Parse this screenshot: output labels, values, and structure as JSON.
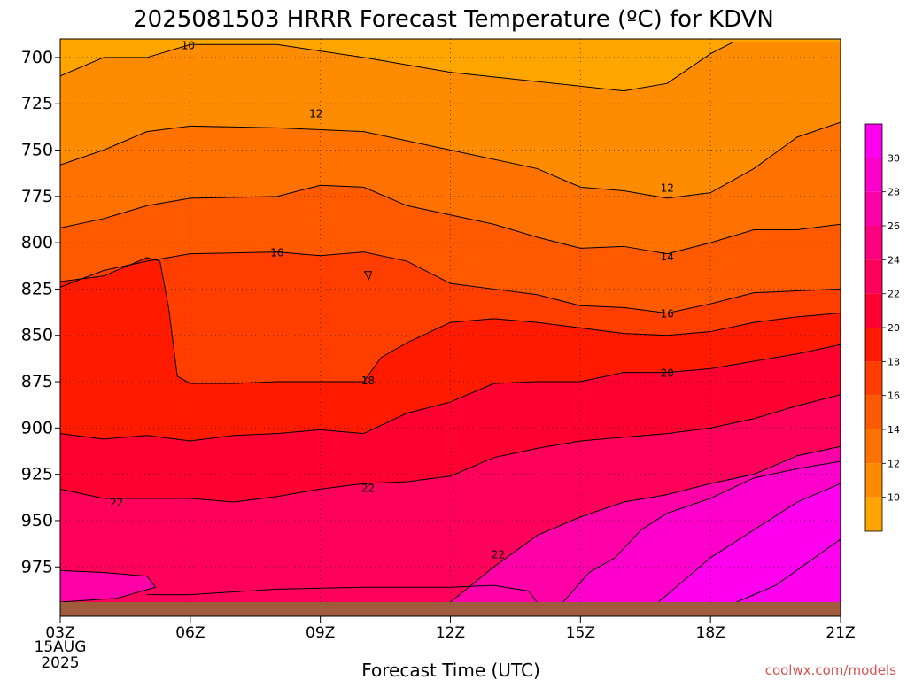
{
  "chart_data": {
    "type": "heatmap",
    "title": "2025081503 HRRR Forecast Temperature (ºC) for KDVN",
    "xlabel": "Forecast Time (UTC)",
    "ylabel": "",
    "x_ticks": [
      "03Z",
      "06Z",
      "09Z",
      "12Z",
      "15Z",
      "18Z",
      "21Z"
    ],
    "x_tick_hours": [
      3,
      6,
      9,
      12,
      15,
      18,
      21
    ],
    "x_date_lines": [
      "15AUG",
      "2025"
    ],
    "xlim": [
      3,
      21
    ],
    "y_ticks": [
      "700",
      "725",
      "750",
      "775",
      "800",
      "825",
      "850",
      "875",
      "900",
      "925",
      "950",
      "975"
    ],
    "y_tick_values": [
      700,
      725,
      750,
      775,
      800,
      825,
      850,
      875,
      900,
      925,
      950,
      975
    ],
    "ylim": [
      690,
      994
    ],
    "y_inverted": true,
    "grid": true,
    "colorbar": {
      "levels": [
        10,
        12,
        14,
        16,
        18,
        20,
        22,
        24,
        26,
        28,
        30
      ],
      "labels": [
        "10",
        "12",
        "14",
        "16",
        "18",
        "20",
        "22",
        "24",
        "26",
        "28",
        "30"
      ],
      "colors": [
        "#ffa500",
        "#ff8c00",
        "#ff7200",
        "#ff5a00",
        "#ff3e00",
        "#ff1a00",
        "#ff0030",
        "#ff005a",
        "#ff0080",
        "#ff00a8",
        "#ff00cc",
        "#ff00ee"
      ]
    },
    "contours": [
      {
        "level": 10,
        "label": "10",
        "label_at": [
          5.95,
          693
        ],
        "points": [
          [
            3,
            710
          ],
          [
            4,
            700
          ],
          [
            5,
            700
          ],
          [
            6,
            693
          ],
          [
            8,
            693
          ],
          [
            10,
            700
          ],
          [
            12,
            708
          ],
          [
            14,
            713
          ],
          [
            16,
            718
          ],
          [
            17,
            714
          ],
          [
            17.5,
            706
          ],
          [
            18,
            698
          ],
          [
            18.5,
            692
          ]
        ]
      },
      {
        "level": 12,
        "label": "12",
        "label_at": [
          17,
          770
        ],
        "points": [
          [
            3,
            758
          ],
          [
            4,
            750
          ],
          [
            5,
            740
          ],
          [
            6,
            737
          ],
          [
            8,
            738
          ],
          [
            10,
            740
          ],
          [
            12,
            750
          ],
          [
            14,
            760
          ],
          [
            15,
            770
          ],
          [
            16,
            772
          ],
          [
            17,
            776
          ],
          [
            18,
            773
          ],
          [
            19,
            760
          ],
          [
            20,
            743
          ],
          [
            21,
            735
          ]
        ]
      },
      {
        "level": 12,
        "label": "12",
        "label_at": [
          8.9,
          730
        ],
        "points": []
      },
      {
        "level": 14,
        "label": "14",
        "label_at": [
          17,
          807
        ],
        "points": [
          [
            3,
            792
          ],
          [
            4,
            787
          ],
          [
            5,
            780
          ],
          [
            6,
            776
          ],
          [
            8,
            775
          ],
          [
            9,
            769
          ],
          [
            10,
            770
          ],
          [
            11,
            780
          ],
          [
            12,
            785
          ],
          [
            13,
            790
          ],
          [
            14,
            797
          ],
          [
            15,
            803
          ],
          [
            16,
            802
          ],
          [
            17,
            806
          ],
          [
            18,
            800
          ],
          [
            19,
            793
          ],
          [
            20,
            793
          ],
          [
            21,
            790
          ]
        ]
      },
      {
        "level": 16,
        "label": "16",
        "label_at": [
          8,
          805
        ],
        "points": []
      },
      {
        "level": 16,
        "label": "16",
        "label_at": [
          17,
          838
        ],
        "points": [
          [
            3,
            824
          ],
          [
            4,
            815
          ],
          [
            5,
            810
          ],
          [
            6,
            806
          ],
          [
            8,
            805
          ],
          [
            9,
            807
          ],
          [
            10,
            805
          ],
          [
            11,
            810
          ],
          [
            12,
            822
          ],
          [
            13,
            825
          ],
          [
            14,
            828
          ],
          [
            15,
            834
          ],
          [
            16,
            835
          ],
          [
            17,
            838
          ],
          [
            18,
            833
          ],
          [
            19,
            827
          ],
          [
            20,
            826
          ],
          [
            21,
            825
          ]
        ]
      },
      {
        "level": 18,
        "label": "18",
        "label_at": [
          10.1,
          874
        ],
        "points": [
          [
            3,
            821
          ],
          [
            4,
            818
          ],
          [
            5,
            808
          ],
          [
            5.3,
            810
          ],
          [
            5.5,
            835
          ],
          [
            5.7,
            872
          ],
          [
            6,
            876
          ],
          [
            7,
            876
          ],
          [
            8,
            875
          ],
          [
            9,
            875
          ],
          [
            10,
            875
          ],
          [
            10.4,
            862
          ],
          [
            11,
            854
          ],
          [
            12,
            843
          ],
          [
            13,
            841
          ],
          [
            14,
            843
          ],
          [
            15,
            846
          ],
          [
            16,
            849
          ],
          [
            17,
            850
          ],
          [
            18,
            848
          ],
          [
            19,
            843
          ],
          [
            20,
            840
          ],
          [
            21,
            838
          ]
        ]
      },
      {
        "level": 20,
        "label": "20",
        "label_at": [
          17,
          870
        ],
        "points": [
          [
            3,
            903
          ],
          [
            4,
            906
          ],
          [
            5,
            904
          ],
          [
            6,
            907
          ],
          [
            7,
            904
          ],
          [
            8,
            903
          ],
          [
            9,
            901
          ],
          [
            10,
            903
          ],
          [
            11,
            892
          ],
          [
            12,
            886
          ],
          [
            13,
            876
          ],
          [
            14,
            875
          ],
          [
            15,
            875
          ],
          [
            16,
            870
          ],
          [
            17,
            870
          ],
          [
            18,
            868
          ],
          [
            19,
            864
          ],
          [
            20,
            860
          ],
          [
            21,
            855
          ]
        ]
      },
      {
        "level": 22,
        "label": "22",
        "label_at": [
          4.3,
          940
        ],
        "points": [
          [
            3,
            933
          ],
          [
            4,
            938
          ],
          [
            5,
            938
          ],
          [
            6,
            938
          ],
          [
            7,
            940
          ],
          [
            8,
            937
          ],
          [
            9,
            933
          ],
          [
            10,
            930
          ],
          [
            11,
            929
          ],
          [
            12,
            926
          ],
          [
            13,
            916
          ],
          [
            14,
            911
          ],
          [
            15,
            907
          ],
          [
            16,
            905
          ],
          [
            17,
            903
          ],
          [
            18,
            900
          ],
          [
            19,
            895
          ],
          [
            20,
            888
          ],
          [
            21,
            882
          ]
        ]
      },
      {
        "level": 22,
        "label": "22",
        "label_at": [
          10.1,
          932
        ],
        "points": []
      },
      {
        "level": 22,
        "label": "22",
        "label_at": [
          13.1,
          968
        ],
        "points": [
          [
            5,
            990
          ],
          [
            6,
            990
          ],
          [
            8,
            987
          ],
          [
            10,
            986
          ],
          [
            12,
            986
          ],
          [
            13,
            985
          ],
          [
            13.8,
            988
          ],
          [
            14,
            994
          ]
        ]
      },
      {
        "level": 24,
        "label": "24",
        "points": [
          [
            3,
            977
          ],
          [
            4,
            978
          ],
          [
            5,
            980
          ],
          [
            5.2,
            986
          ],
          [
            4.3,
            992
          ],
          [
            3,
            994
          ]
        ]
      },
      {
        "level": 24,
        "label": "24",
        "points": [
          [
            12,
            994
          ],
          [
            13,
            975
          ],
          [
            14,
            958
          ],
          [
            15,
            948
          ],
          [
            16,
            940
          ],
          [
            17,
            936
          ],
          [
            18,
            930
          ],
          [
            19,
            925
          ],
          [
            20,
            915
          ],
          [
            21,
            910
          ]
        ]
      },
      {
        "level": 26,
        "label": "26",
        "points": [
          [
            14.6,
            994
          ],
          [
            15.2,
            978
          ],
          [
            15.8,
            970
          ],
          [
            16.4,
            955
          ],
          [
            17,
            946
          ],
          [
            18,
            938
          ],
          [
            19,
            927
          ],
          [
            20,
            922
          ],
          [
            21,
            918
          ]
        ]
      },
      {
        "level": 28,
        "label": "28",
        "points": [
          [
            16.8,
            994
          ],
          [
            17.5,
            980
          ],
          [
            18,
            970
          ],
          [
            19,
            955
          ],
          [
            20,
            940
          ],
          [
            21,
            930
          ]
        ]
      },
      {
        "level": 30,
        "label": "30",
        "points": [
          [
            18.6,
            994
          ],
          [
            19.5,
            985
          ],
          [
            20.4,
            970
          ],
          [
            21,
            960
          ]
        ]
      }
    ],
    "small_contour": {
      "level": 18,
      "label": "",
      "center": [
        10.1,
        817
      ]
    }
  },
  "credit": "coolwx.com/models"
}
